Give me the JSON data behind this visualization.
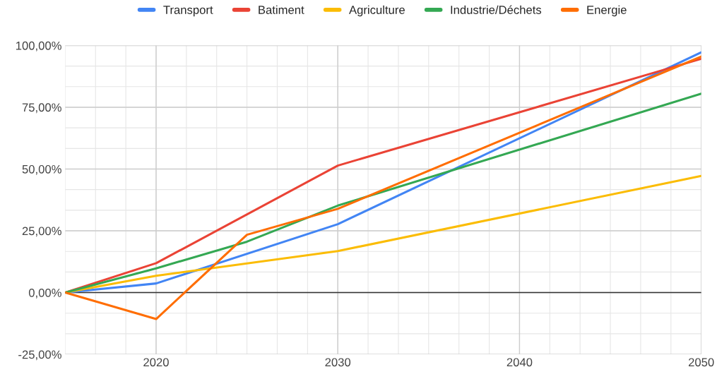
{
  "chart_data": {
    "type": "line",
    "series": [
      {
        "name": "Transport",
        "color": "#4285f4",
        "x": [
          2015,
          2020,
          2030,
          2050
        ],
        "values": [
          0,
          3.7,
          27.7,
          97.2
        ]
      },
      {
        "name": "Batiment",
        "color": "#ea4335",
        "x": [
          2015,
          2020,
          2030,
          2050
        ],
        "values": [
          0,
          11.9,
          51.4,
          94.6
        ]
      },
      {
        "name": "Agriculture",
        "color": "#fbbc04",
        "x": [
          2015,
          2020,
          2030,
          2050
        ],
        "values": [
          0,
          6.8,
          16.8,
          47.2
        ]
      },
      {
        "name": "Industrie/Déchets",
        "color": "#34a853",
        "x": [
          2015,
          2020,
          2025,
          2030,
          2050
        ],
        "values": [
          0,
          9.8,
          20.6,
          35.2,
          80.5
        ]
      },
      {
        "name": "Energie",
        "color": "#ff6d01",
        "x": [
          2015,
          2020,
          2025,
          2030,
          2050
        ],
        "values": [
          0,
          -10.7,
          23.4,
          33.9,
          95.5
        ]
      }
    ],
    "xlim": [
      2015,
      2050
    ],
    "xticks": [
      2020,
      2030,
      2040,
      2050
    ],
    "ylim": [
      -25,
      100
    ],
    "yticks": [
      {
        "value": -25,
        "label": "-25,00%"
      },
      {
        "value": 0,
        "label": "0,00%"
      },
      {
        "value": 25,
        "label": "25,00%"
      },
      {
        "value": 50,
        "label": "50,00%"
      },
      {
        "value": 75,
        "label": "75,00%"
      },
      {
        "value": 100,
        "label": "100,00%"
      }
    ],
    "ref_lines": [
      {
        "axis": "y",
        "value": 0,
        "color": "#333333"
      }
    ],
    "grid": true,
    "legend": "top",
    "marker": "none",
    "line_style": "solid"
  }
}
